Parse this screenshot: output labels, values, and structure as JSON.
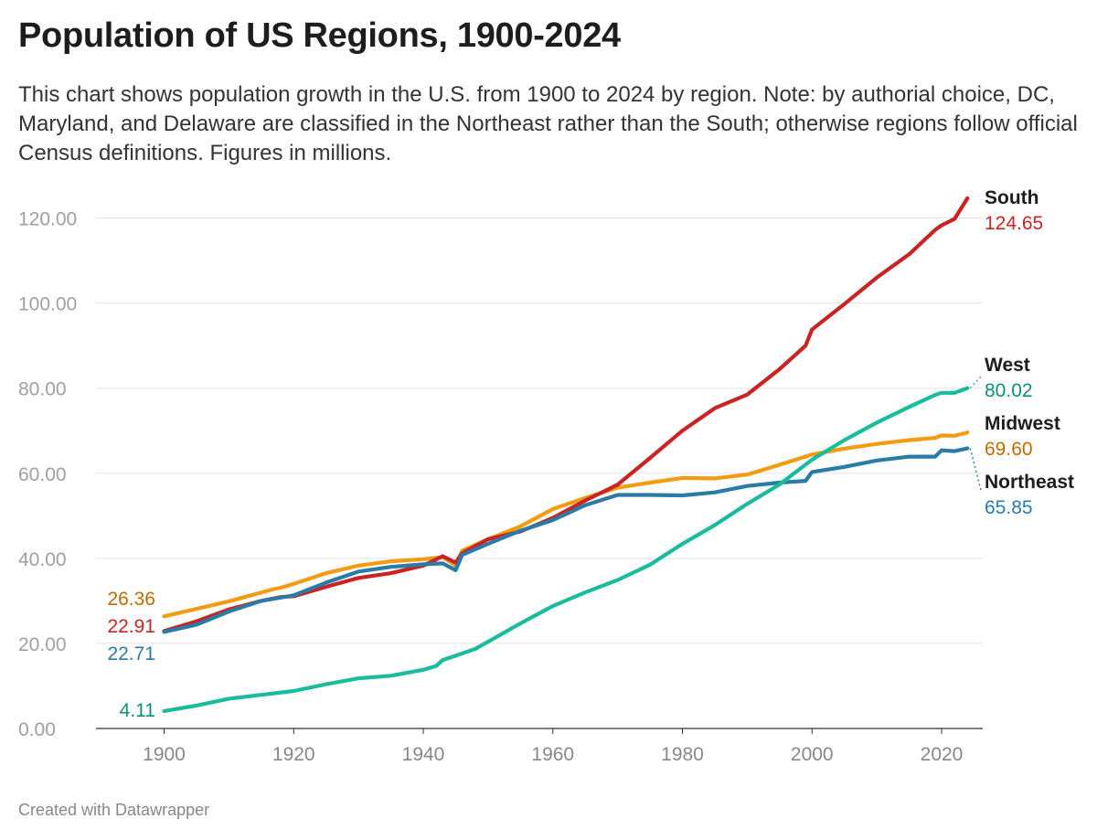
{
  "chart_data": {
    "type": "line",
    "title": "Population of US Regions, 1900-2024",
    "subtitle": "This chart shows population growth in the U.S. from 1900 to 2024 by region. Note: by authorial choice, DC, Maryland, and Delaware are classified in the Northeast rather than the South; otherwise regions follow official Census definitions. Figures in millions.",
    "xlabel": "",
    "ylabel": "",
    "xlim": [
      1890,
      2026
    ],
    "ylim": [
      0,
      124.65
    ],
    "x_ticks": [
      "1900",
      "1920",
      "1940",
      "1960",
      "1980",
      "2000",
      "2020"
    ],
    "y_ticks": [
      "0.00",
      "20.00",
      "40.00",
      "60.00",
      "80.00",
      "100.00",
      "120.00"
    ],
    "grid": true,
    "legend": "direct labels at line ends",
    "series": [
      {
        "name": "Midwest",
        "color": "#f39c12",
        "label_color": "#c26a00",
        "start_label": "26.36",
        "end_label": "69.60",
        "points": [
          [
            1900,
            26.36
          ],
          [
            1910,
            29.9
          ],
          [
            1917,
            32.8
          ],
          [
            1918,
            33.1
          ],
          [
            1920,
            34.0
          ],
          [
            1925,
            36.5
          ],
          [
            1930,
            38.3
          ],
          [
            1935,
            39.3
          ],
          [
            1940,
            39.8
          ],
          [
            1943,
            40.3
          ],
          [
            1945,
            38.3
          ],
          [
            1946,
            41.8
          ],
          [
            1950,
            44.5
          ],
          [
            1955,
            47.5
          ],
          [
            1960,
            51.6
          ],
          [
            1965,
            54.2
          ],
          [
            1970,
            56.6
          ],
          [
            1975,
            57.8
          ],
          [
            1980,
            58.9
          ],
          [
            1985,
            58.8
          ],
          [
            1990,
            59.7
          ],
          [
            1995,
            62.0
          ],
          [
            2000,
            64.4
          ],
          [
            2005,
            65.8
          ],
          [
            2010,
            66.9
          ],
          [
            2015,
            67.8
          ],
          [
            2019,
            68.3
          ],
          [
            2020,
            68.9
          ],
          [
            2022,
            68.8
          ],
          [
            2024,
            69.6
          ]
        ]
      },
      {
        "name": "South",
        "color": "#c92424",
        "label_color": "#c92424",
        "start_label": "22.91",
        "end_label": "124.65",
        "points": [
          [
            1900,
            22.91
          ],
          [
            1905,
            25.2
          ],
          [
            1910,
            28.0
          ],
          [
            1915,
            30.0
          ],
          [
            1918,
            30.9
          ],
          [
            1920,
            31.1
          ],
          [
            1925,
            33.3
          ],
          [
            1930,
            35.4
          ],
          [
            1935,
            36.5
          ],
          [
            1940,
            38.3
          ],
          [
            1943,
            40.5
          ],
          [
            1945,
            39.0
          ],
          [
            1946,
            41.2
          ],
          [
            1950,
            44.5
          ],
          [
            1955,
            46.3
          ],
          [
            1960,
            49.5
          ],
          [
            1965,
            53.6
          ],
          [
            1970,
            57.3
          ],
          [
            1975,
            63.6
          ],
          [
            1980,
            70.0
          ],
          [
            1985,
            75.3
          ],
          [
            1990,
            78.5
          ],
          [
            1995,
            84.5
          ],
          [
            1999,
            90.0
          ],
          [
            2000,
            93.8
          ],
          [
            2005,
            99.8
          ],
          [
            2010,
            106.0
          ],
          [
            2015,
            111.5
          ],
          [
            2019,
            117.2
          ],
          [
            2020,
            118.3
          ],
          [
            2022,
            119.8
          ],
          [
            2024,
            124.65
          ]
        ]
      },
      {
        "name": "Northeast",
        "color": "#2a7ba6",
        "label_color": "#2a7ba6",
        "start_label": "22.71",
        "end_label": "65.85",
        "points": [
          [
            1900,
            22.71
          ],
          [
            1905,
            24.4
          ],
          [
            1910,
            27.5
          ],
          [
            1915,
            30.0
          ],
          [
            1920,
            31.3
          ],
          [
            1925,
            34.3
          ],
          [
            1930,
            36.9
          ],
          [
            1935,
            38.0
          ],
          [
            1940,
            38.6
          ],
          [
            1943,
            38.8
          ],
          [
            1945,
            37.2
          ],
          [
            1946,
            40.8
          ],
          [
            1950,
            43.4
          ],
          [
            1955,
            46.5
          ],
          [
            1960,
            49.0
          ],
          [
            1965,
            52.5
          ],
          [
            1970,
            54.9
          ],
          [
            1975,
            54.9
          ],
          [
            1980,
            54.8
          ],
          [
            1985,
            55.5
          ],
          [
            1990,
            57.0
          ],
          [
            1995,
            57.8
          ],
          [
            1999,
            58.2
          ],
          [
            2000,
            60.3
          ],
          [
            2005,
            61.5
          ],
          [
            2010,
            63.0
          ],
          [
            2015,
            63.9
          ],
          [
            2019,
            63.9
          ],
          [
            2020,
            65.4
          ],
          [
            2022,
            65.2
          ],
          [
            2024,
            65.85
          ]
        ]
      },
      {
        "name": "West",
        "color": "#1abc9c",
        "label_color": "#0e8f78",
        "start_label": "4.11",
        "end_label": "80.02",
        "points": [
          [
            1900,
            4.11
          ],
          [
            1905,
            5.4
          ],
          [
            1910,
            7.0
          ],
          [
            1915,
            7.9
          ],
          [
            1920,
            8.8
          ],
          [
            1925,
            10.4
          ],
          [
            1930,
            11.8
          ],
          [
            1935,
            12.4
          ],
          [
            1940,
            13.8
          ],
          [
            1942,
            14.7
          ],
          [
            1943,
            16.1
          ],
          [
            1945,
            17.1
          ],
          [
            1948,
            18.7
          ],
          [
            1950,
            20.4
          ],
          [
            1955,
            24.7
          ],
          [
            1960,
            28.8
          ],
          [
            1965,
            32.0
          ],
          [
            1970,
            34.9
          ],
          [
            1975,
            38.5
          ],
          [
            1980,
            43.4
          ],
          [
            1985,
            47.8
          ],
          [
            1990,
            52.8
          ],
          [
            1995,
            57.4
          ],
          [
            2000,
            63.2
          ],
          [
            2005,
            67.8
          ],
          [
            2010,
            71.9
          ],
          [
            2015,
            75.6
          ],
          [
            2019,
            78.4
          ],
          [
            2020,
            78.9
          ],
          [
            2022,
            78.9
          ],
          [
            2024,
            80.02
          ]
        ]
      }
    ]
  },
  "footer": {
    "credit": "Created with Datawrapper"
  }
}
